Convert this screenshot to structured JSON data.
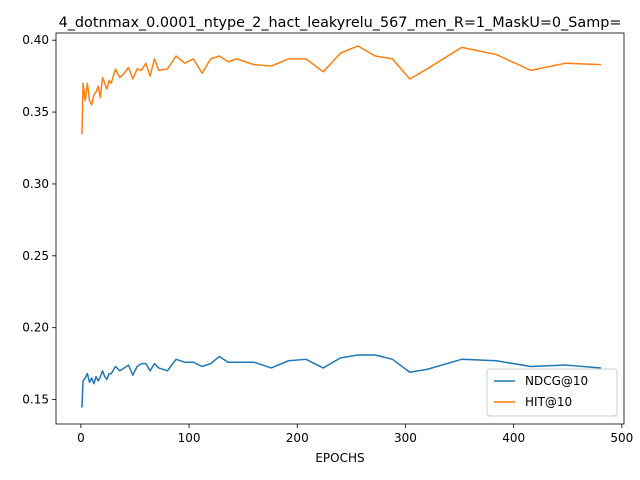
{
  "chart_data": {
    "type": "line",
    "title": "4_dotnmax_0.0001_ntype_2_hact_leakyrelu_567_men_R=1_MaskU=0_Samp=",
    "xlabel": "EPOCHS",
    "ylabel": "",
    "xlim": [
      -23,
      502
    ],
    "ylim": [
      0.133,
      0.405
    ],
    "xticks": [
      0,
      100,
      200,
      300,
      400,
      500
    ],
    "yticks": [
      0.15,
      0.2,
      0.25,
      0.3,
      0.35,
      0.4
    ],
    "xtick_labels": [
      "0",
      "100",
      "200",
      "300",
      "400",
      "500"
    ],
    "ytick_labels": [
      "0.15",
      "0.20",
      "0.25",
      "0.30",
      "0.35",
      "0.40"
    ],
    "legend_position": "lower-right",
    "series": [
      {
        "name": "NDCG@10",
        "color": "#1f77b4",
        "x": [
          1,
          2,
          4,
          6,
          8,
          10,
          12,
          14,
          16,
          18,
          20,
          22,
          24,
          26,
          28,
          32,
          36,
          40,
          44,
          48,
          52,
          56,
          60,
          64,
          68,
          72,
          80,
          88,
          96,
          104,
          112,
          120,
          128,
          136,
          144,
          160,
          176,
          192,
          208,
          224,
          240,
          256,
          272,
          288,
          304,
          320,
          352,
          384,
          416,
          448,
          480
        ],
        "y": [
          0.145,
          0.163,
          0.165,
          0.168,
          0.162,
          0.165,
          0.161,
          0.166,
          0.163,
          0.166,
          0.17,
          0.166,
          0.164,
          0.168,
          0.168,
          0.173,
          0.17,
          0.172,
          0.174,
          0.167,
          0.173,
          0.175,
          0.175,
          0.17,
          0.175,
          0.172,
          0.17,
          0.178,
          0.176,
          0.176,
          0.173,
          0.175,
          0.18,
          0.176,
          0.176,
          0.176,
          0.172,
          0.177,
          0.178,
          0.172,
          0.179,
          0.181,
          0.181,
          0.178,
          0.169,
          0.171,
          0.178,
          0.177,
          0.173,
          0.174,
          0.172
        ]
      },
      {
        "name": "HIT@10",
        "color": "#ff7f0e",
        "x": [
          1,
          2,
          4,
          6,
          8,
          10,
          12,
          14,
          16,
          18,
          20,
          22,
          24,
          26,
          28,
          32,
          36,
          40,
          44,
          48,
          52,
          56,
          60,
          64,
          68,
          72,
          80,
          88,
          96,
          104,
          112,
          120,
          128,
          136,
          144,
          160,
          176,
          192,
          208,
          224,
          240,
          256,
          272,
          288,
          304,
          320,
          352,
          384,
          416,
          448,
          480
        ],
        "y": [
          0.335,
          0.37,
          0.358,
          0.37,
          0.358,
          0.355,
          0.362,
          0.364,
          0.368,
          0.36,
          0.374,
          0.37,
          0.366,
          0.372,
          0.37,
          0.38,
          0.374,
          0.377,
          0.381,
          0.373,
          0.38,
          0.379,
          0.384,
          0.375,
          0.387,
          0.379,
          0.38,
          0.389,
          0.384,
          0.387,
          0.377,
          0.387,
          0.389,
          0.385,
          0.387,
          0.383,
          0.382,
          0.387,
          0.387,
          0.378,
          0.391,
          0.396,
          0.389,
          0.387,
          0.373,
          0.38,
          0.395,
          0.39,
          0.379,
          0.384,
          0.383
        ]
      }
    ]
  }
}
